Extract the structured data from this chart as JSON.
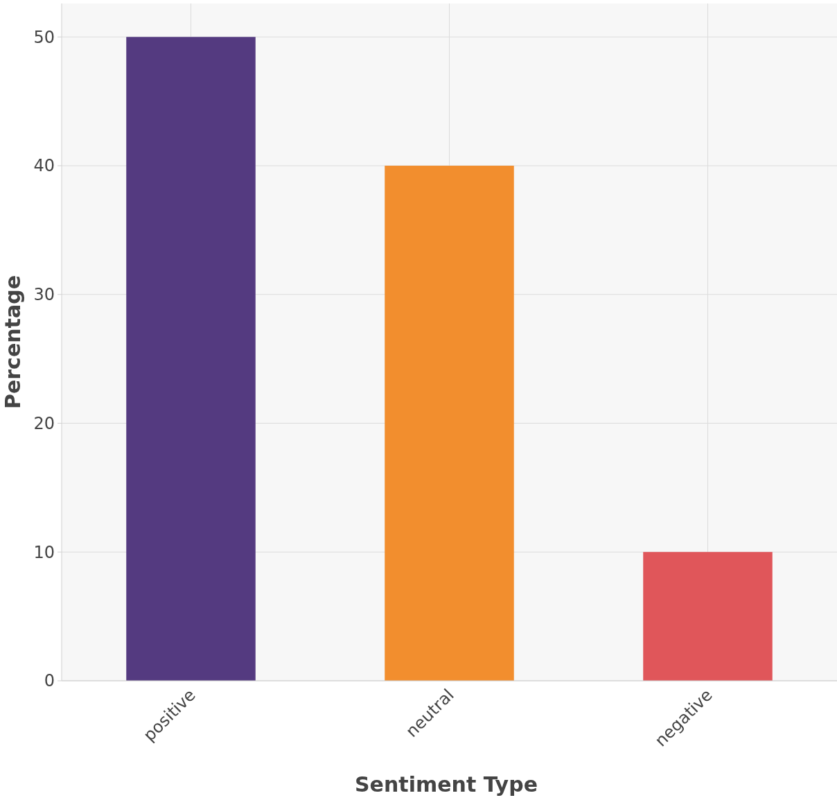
{
  "chart_data": {
    "type": "bar",
    "xlabel": "Sentiment Type",
    "ylabel": "Percentage",
    "categories": [
      "positive",
      "neutral",
      "negative"
    ],
    "values": [
      50,
      40,
      10
    ],
    "colors": [
      "#543a80",
      "#f28e2e",
      "#e0565a"
    ],
    "ylim": [
      0,
      52.6
    ],
    "yticks": [
      0,
      10,
      20,
      30,
      40,
      50
    ],
    "grid": true
  }
}
